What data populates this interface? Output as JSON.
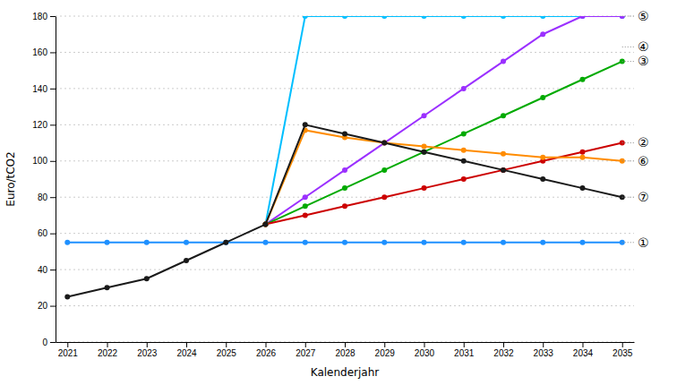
{
  "chart_data": {
    "type": "line",
    "xlabel": "Kalenderjahr",
    "ylabel": "Euro/tCO2",
    "xlim": [
      2020.7,
      2035.3
    ],
    "xticks": [
      2021,
      2022,
      2023,
      2024,
      2025,
      2026,
      2027,
      2028,
      2029,
      2030,
      2031,
      2032,
      2033,
      2034,
      2035
    ],
    "ylim": [
      0,
      180
    ],
    "yticks": [
      0,
      20,
      40,
      60,
      80,
      100,
      120,
      140,
      160,
      180
    ],
    "grid": true,
    "marker": "circle",
    "series": [
      {
        "color": "#00BFFF",
        "x": [
          2026,
          2027,
          2028,
          2029,
          2030,
          2031,
          2032,
          2033,
          2034,
          2035
        ],
        "values": [
          65,
          180,
          180,
          180,
          180,
          180,
          180,
          180,
          180,
          180
        ]
      },
      {
        "color": "#9B30FF",
        "x": [
          2026,
          2027,
          2028,
          2029,
          2030,
          2031,
          2032,
          2033,
          2034,
          2035
        ],
        "values": [
          65,
          80,
          95,
          110,
          125,
          140,
          155,
          170,
          180,
          180
        ]
      },
      {
        "color": "#00AA00",
        "x": [
          2026,
          2027,
          2028,
          2029,
          2030,
          2031,
          2032,
          2033,
          2034,
          2035
        ],
        "values": [
          65,
          75,
          85,
          95,
          105,
          115,
          125,
          135,
          145,
          155
        ]
      },
      {
        "color": "#1E90FF",
        "x": [
          2021,
          2022,
          2023,
          2024,
          2025,
          2026,
          2027,
          2028,
          2029,
          2030,
          2031,
          2032,
          2033,
          2034,
          2035
        ],
        "values": [
          55,
          55,
          55,
          55,
          55,
          55,
          55,
          55,
          55,
          55,
          55,
          55,
          55,
          55,
          55
        ]
      },
      {
        "color": "#CC0000",
        "x": [
          2026,
          2027,
          2028,
          2029,
          2030,
          2031,
          2032,
          2033,
          2034,
          2035
        ],
        "values": [
          65,
          70,
          75,
          80,
          85,
          90,
          95,
          100,
          105,
          110
        ]
      },
      {
        "color": "#FF8C00",
        "x": [
          2026,
          2027,
          2028,
          2029,
          2030,
          2031,
          2032,
          2033,
          2034,
          2035
        ],
        "values": [
          65,
          117,
          113,
          110,
          108,
          106,
          104,
          102,
          102,
          100
        ]
      },
      {
        "color": "#1A1A1A",
        "x": [
          2021,
          2022,
          2023,
          2024,
          2025,
          2026,
          2027,
          2028,
          2029,
          2030,
          2031,
          2032,
          2033,
          2034,
          2035
        ],
        "values": [
          25,
          30,
          35,
          45,
          55,
          65,
          120,
          115,
          110,
          105,
          100,
          95,
          90,
          85,
          80
        ]
      }
    ],
    "annotations": [
      {
        "text": "①",
        "x": 2035,
        "y": 55
      },
      {
        "text": "②",
        "x": 2035,
        "y": 110
      },
      {
        "text": "③",
        "x": 2035,
        "y": 155
      },
      {
        "text": "④",
        "x": 2035,
        "y": 163
      },
      {
        "text": "⑤",
        "x": 2035,
        "y": 180
      },
      {
        "text": "⑥",
        "x": 2035,
        "y": 100
      },
      {
        "text": "⑦",
        "x": 2035,
        "y": 80
      }
    ]
  }
}
